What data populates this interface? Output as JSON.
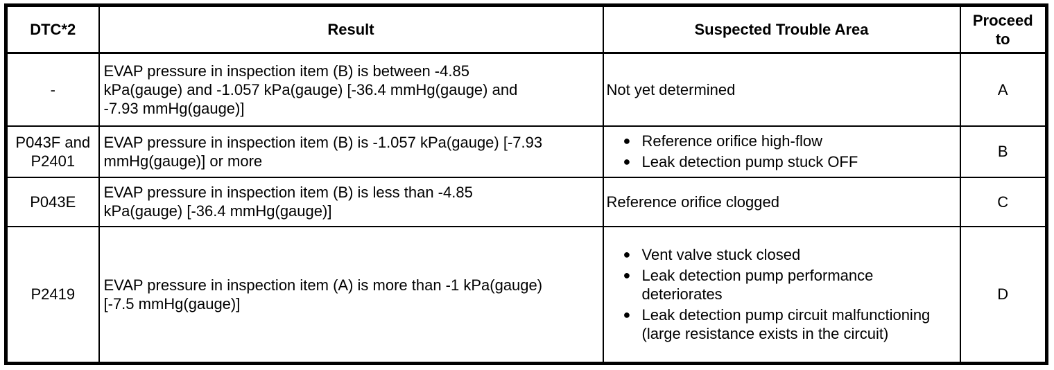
{
  "colors": {
    "border": "#000000",
    "background": "#ffffff",
    "text": "#000000"
  },
  "icons": {
    "bullet": "●"
  },
  "table": {
    "headers": {
      "dtc": "DTC*2",
      "result": "Result",
      "trouble": "Suspected Trouble Area",
      "proceed": "Proceed to"
    },
    "rows": [
      {
        "dtc": "-",
        "result": "EVAP pressure in inspection item (B) is between -4.85 kPa(gauge) and -1.057 kPa(gauge) [-36.4 mmHg(gauge) and -7.93 mmHg(gauge)]",
        "trouble": "Not yet determined",
        "proceed": "A"
      },
      {
        "dtc": "P043F and P2401",
        "result": "EVAP pressure in inspection item (B) is -1.057 kPa(gauge) [-7.93 mmHg(gauge)] or more",
        "trouble_bullets": [
          "Reference orifice high-flow",
          "Leak detection pump stuck OFF"
        ],
        "proceed": "B"
      },
      {
        "dtc": "P043E",
        "result": "EVAP pressure in inspection item (B) is less than -4.85 kPa(gauge) [-36.4 mmHg(gauge)]",
        "trouble": "Reference orifice clogged",
        "proceed": "C"
      },
      {
        "dtc": "P2419",
        "result": "EVAP pressure in inspection item (A) is more than -1 kPa(gauge) [-7.5 mmHg(gauge)]",
        "trouble_bullets": [
          "Vent valve stuck closed",
          "Leak detection pump performance deteriorates",
          "Leak detection pump circuit malfunctioning (large resistance exists in the circuit)"
        ],
        "proceed": "D"
      }
    ]
  }
}
